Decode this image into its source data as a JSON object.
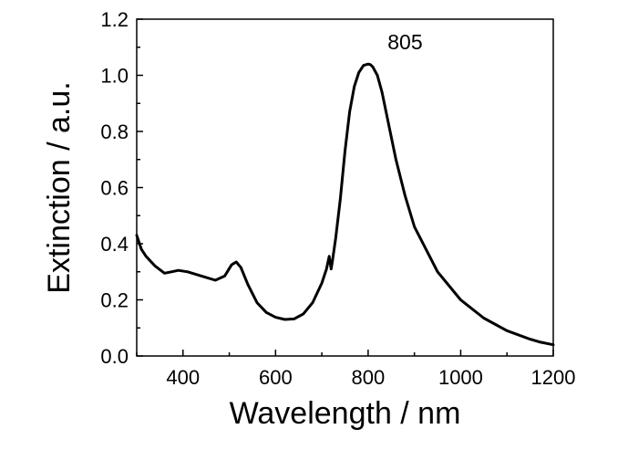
{
  "chart_data": {
    "type": "line",
    "title": "",
    "xlabel": "Wavelength / nm",
    "ylabel": "Extinction / a.u.",
    "xlim": [
      300,
      1200
    ],
    "ylim": [
      0.0,
      1.2
    ],
    "x_ticks": [
      400,
      600,
      800,
      1000,
      1200
    ],
    "x_tick_labels": [
      "400",
      "600",
      "800",
      "1000",
      "1200"
    ],
    "y_ticks": [
      0.0,
      0.2,
      0.4,
      0.6,
      0.8,
      1.0,
      1.2
    ],
    "y_tick_labels": [
      "0.0",
      "0.2",
      "0.4",
      "0.6",
      "0.8",
      "1.0",
      "1.2"
    ],
    "grid": false,
    "line_color": "#000000",
    "annotations": [
      {
        "text": "805",
        "x": 805,
        "y": 1.1
      }
    ],
    "series": [
      {
        "name": "Extinction",
        "x": [
          300,
          310,
          320,
          340,
          360,
          375,
          390,
          410,
          440,
          470,
          490,
          505,
          515,
          525,
          540,
          560,
          580,
          600,
          620,
          640,
          660,
          680,
          700,
          710,
          716,
          720,
          723,
          730,
          740,
          750,
          760,
          770,
          780,
          790,
          800,
          805,
          810,
          820,
          830,
          840,
          860,
          880,
          900,
          950,
          1000,
          1050,
          1100,
          1150,
          1170,
          1200
        ],
        "y": [
          0.43,
          0.38,
          0.355,
          0.32,
          0.295,
          0.3,
          0.305,
          0.3,
          0.285,
          0.27,
          0.285,
          0.325,
          0.335,
          0.315,
          0.255,
          0.19,
          0.155,
          0.138,
          0.13,
          0.132,
          0.15,
          0.19,
          0.26,
          0.31,
          0.355,
          0.31,
          0.34,
          0.42,
          0.56,
          0.73,
          0.87,
          0.96,
          1.01,
          1.035,
          1.04,
          1.038,
          1.03,
          1.0,
          0.94,
          0.86,
          0.7,
          0.57,
          0.46,
          0.3,
          0.2,
          0.135,
          0.09,
          0.06,
          0.05,
          0.04
        ]
      }
    ]
  }
}
